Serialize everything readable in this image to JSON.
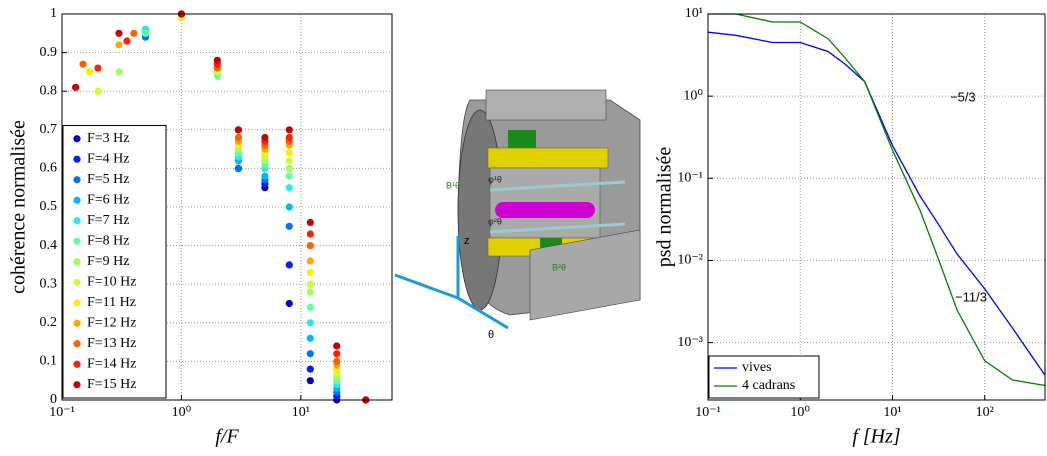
{
  "chart_data": [
    {
      "type": "scatter",
      "ylabel": "cohérence normalisée",
      "xlabel": "f/F",
      "xscale": "log",
      "xlim": [
        0.1,
        58
      ],
      "xticks": [
        {
          "value": 0.1,
          "label": "10⁻¹"
        },
        {
          "value": 1,
          "label": "10⁰"
        },
        {
          "value": 10,
          "label": "10¹"
        }
      ],
      "ylim": [
        0,
        1
      ],
      "yticks": [
        0,
        0.1,
        0.2,
        0.3,
        0.4,
        0.5,
        0.6,
        0.7,
        0.8,
        0.9,
        1
      ],
      "grid": true,
      "legend": "lower left",
      "series": [
        {
          "name": "F=3 Hz",
          "color": "#0000c0",
          "x": [
            0.5,
            1,
            2,
            3,
            5,
            8,
            12,
            20,
            35
          ],
          "values": [
            0.95,
            1,
            0.85,
            0.6,
            0.55,
            0.25,
            0.05,
            0,
            0
          ]
        },
        {
          "name": "F=4 Hz",
          "color": "#0020ff",
          "x": [
            0.5,
            1,
            2,
            3,
            5,
            8,
            12,
            20,
            35
          ],
          "values": [
            0.96,
            1,
            0.86,
            0.62,
            0.56,
            0.35,
            0.08,
            0.01,
            0
          ]
        },
        {
          "name": "F=5 Hz",
          "color": "#0070ff",
          "x": [
            0.5,
            1,
            2,
            3,
            5,
            8,
            12,
            20,
            35
          ],
          "values": [
            0.94,
            1,
            0.85,
            0.6,
            0.57,
            0.45,
            0.12,
            0.02,
            0
          ]
        },
        {
          "name": "F=6 Hz",
          "color": "#00b8ff",
          "x": [
            0.5,
            1,
            2,
            3,
            5,
            8,
            12,
            20,
            35
          ],
          "values": [
            0.95,
            0.99,
            0.86,
            0.62,
            0.58,
            0.5,
            0.16,
            0.03,
            0
          ]
        },
        {
          "name": "F=7 Hz",
          "color": "#20f0e0",
          "x": [
            0.5,
            1,
            2,
            3,
            5,
            8,
            12,
            20,
            35
          ],
          "values": [
            0.96,
            1,
            0.85,
            0.63,
            0.6,
            0.55,
            0.2,
            0.04,
            0
          ]
        },
        {
          "name": "F=8 Hz",
          "color": "#60ffa0",
          "x": [
            0.5,
            1,
            2,
            3,
            5,
            8,
            12,
            20,
            35
          ],
          "values": [
            0.95,
            1,
            0.84,
            0.64,
            0.61,
            0.58,
            0.24,
            0.05,
            0
          ]
        },
        {
          "name": "F=9 Hz",
          "color": "#a0ff60",
          "x": [
            0.3,
            1,
            2,
            3,
            5,
            8,
            12,
            20,
            35
          ],
          "values": [
            0.85,
            1,
            0.86,
            0.65,
            0.62,
            0.6,
            0.28,
            0.06,
            0
          ]
        },
        {
          "name": "F=10 Hz",
          "color": "#d0ff30",
          "x": [
            0.2,
            1,
            2,
            3,
            5,
            8,
            12,
            20,
            35
          ],
          "values": [
            0.8,
            0.99,
            0.85,
            0.66,
            0.63,
            0.62,
            0.3,
            0.07,
            0
          ]
        },
        {
          "name": "F=11 Hz",
          "color": "#ffee00",
          "x": [
            0.17,
            1,
            2,
            3,
            5,
            8,
            12,
            20,
            35
          ],
          "values": [
            0.85,
            1,
            0.86,
            0.66,
            0.64,
            0.64,
            0.33,
            0.08,
            0
          ]
        },
        {
          "name": "F=12 Hz",
          "color": "#ffa800",
          "x": [
            0.3,
            1,
            2,
            3,
            5,
            8,
            12,
            20,
            35
          ],
          "values": [
            0.92,
            1,
            0.87,
            0.67,
            0.65,
            0.66,
            0.36,
            0.09,
            0
          ]
        },
        {
          "name": "F=13 Hz",
          "color": "#ff6000",
          "x": [
            0.15,
            0.4,
            1,
            2,
            3,
            5,
            8,
            12,
            20,
            35
          ],
          "values": [
            0.87,
            0.95,
            1,
            0.86,
            0.68,
            0.66,
            0.67,
            0.4,
            0.1,
            0
          ]
        },
        {
          "name": "F=14 Hz",
          "color": "#ff2000",
          "x": [
            0.2,
            0.35,
            1,
            2,
            3,
            5,
            8,
            12,
            20,
            35
          ],
          "values": [
            0.86,
            0.93,
            1,
            0.87,
            0.7,
            0.67,
            0.68,
            0.43,
            0.12,
            0
          ]
        },
        {
          "name": "F=15 Hz",
          "color": "#c80000",
          "x": [
            0.13,
            0.3,
            1,
            2,
            3,
            5,
            8,
            12,
            20,
            35
          ],
          "values": [
            0.81,
            0.95,
            1,
            0.88,
            0.7,
            0.68,
            0.7,
            0.46,
            0.14,
            0
          ]
        }
      ]
    },
    {
      "type": "line",
      "ylabel": "psd normalisée",
      "xlabel": "f  [Hz]",
      "xscale": "log",
      "yscale": "log",
      "xlim": [
        0.1,
        450
      ],
      "xticks": [
        {
          "value": 0.1,
          "label": "10⁻¹"
        },
        {
          "value": 1,
          "label": "10⁰"
        },
        {
          "value": 10,
          "label": "10¹"
        },
        {
          "value": 100,
          "label": "10²"
        }
      ],
      "ylim": [
        0.0002,
        10
      ],
      "yticks": [
        {
          "value": 0.001,
          "label": "10⁻³"
        },
        {
          "value": 0.01,
          "label": "10⁻²"
        },
        {
          "value": 0.1,
          "label": "10⁻¹"
        },
        {
          "value": 1,
          "label": "10⁰"
        },
        {
          "value": 10,
          "label": "10¹"
        }
      ],
      "grid": true,
      "legend": "lower left",
      "annotations": [
        "−5/3",
        "−11/3"
      ],
      "series": [
        {
          "name": "vives",
          "color": "#0000ff",
          "x": [
            0.1,
            0.2,
            0.5,
            1,
            2,
            3,
            5,
            10,
            20,
            30,
            50,
            100,
            200,
            450
          ],
          "values": [
            6,
            5.5,
            4.5,
            4.5,
            3.5,
            2.5,
            1.5,
            0.25,
            0.06,
            0.03,
            0.012,
            0.0045,
            0.0015,
            0.0004
          ]
        },
        {
          "name": "4 cadrans",
          "color": "#008000",
          "x": [
            0.1,
            0.2,
            0.5,
            1,
            2,
            3,
            5,
            10,
            20,
            30,
            50,
            100,
            200,
            450
          ],
          "values": [
            10,
            10,
            8,
            8,
            5,
            3,
            1.5,
            0.22,
            0.04,
            0.012,
            0.0025,
            0.0006,
            0.00035,
            0.0003
          ]
        }
      ]
    }
  ],
  "diagram": {
    "labels": [
      "z",
      "r",
      "θ",
      "B¹θ",
      "B²θ",
      "φ¹θ",
      "φ²θ"
    ]
  }
}
